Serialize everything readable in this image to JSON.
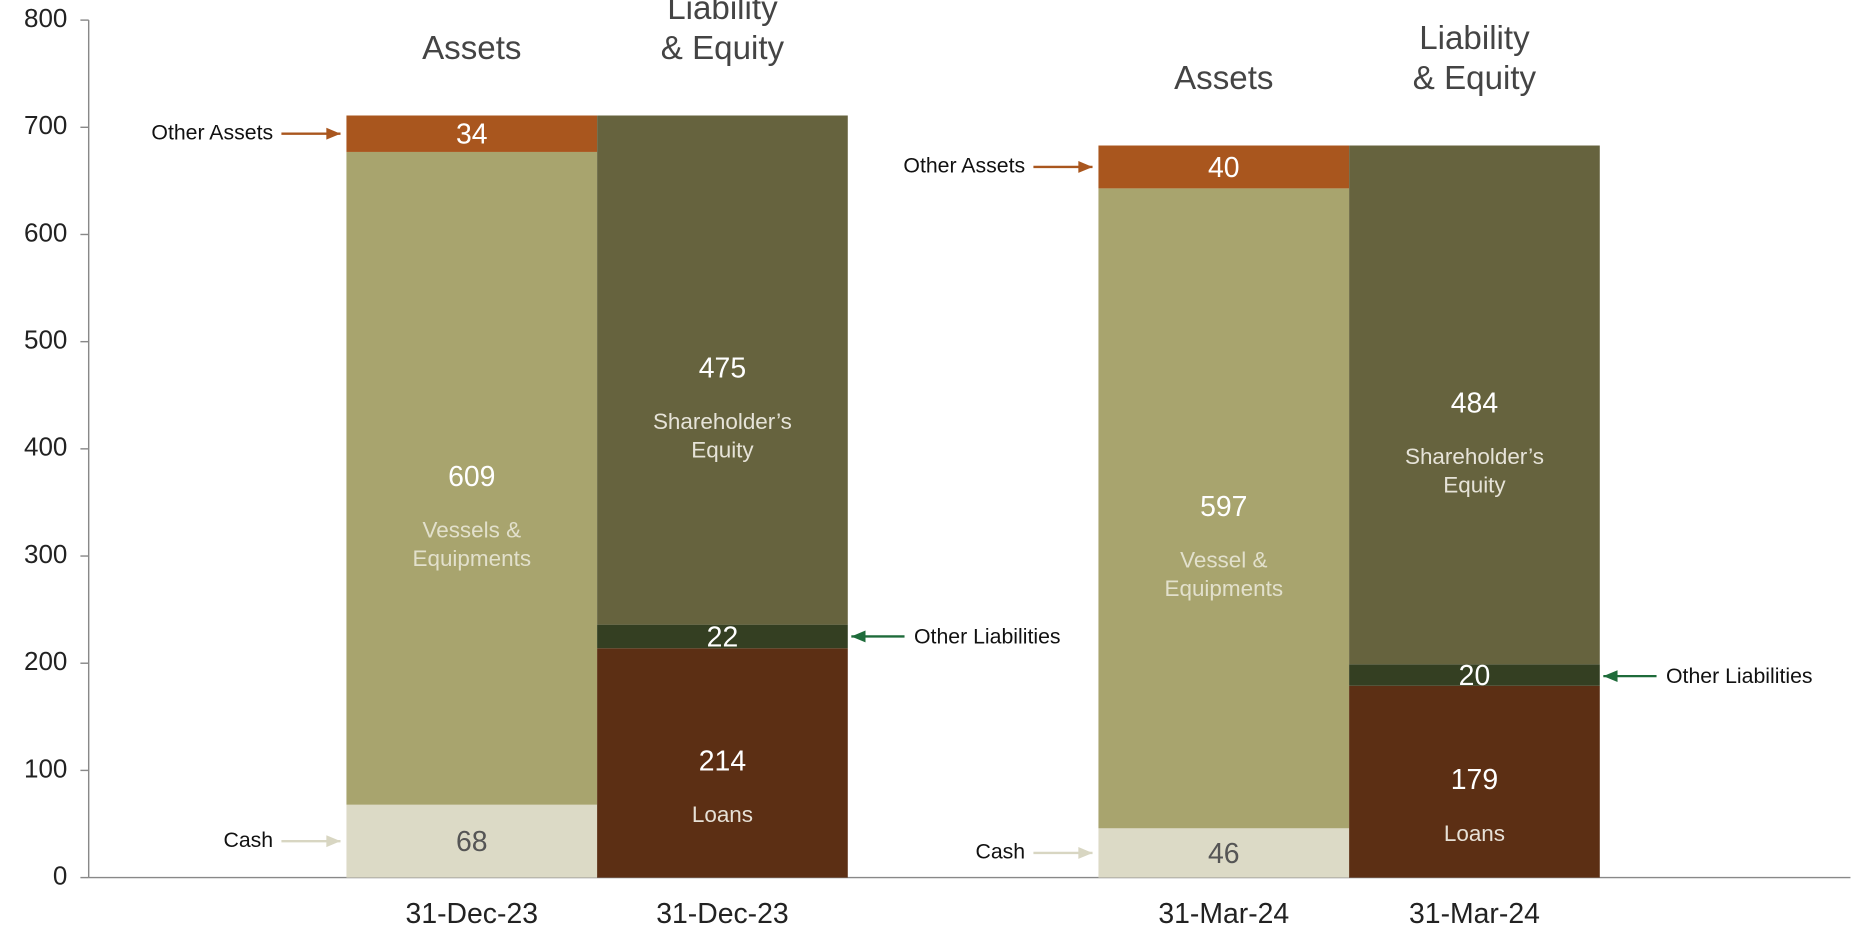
{
  "chart_data": {
    "type": "stacked_bar",
    "ylim": [
      0,
      800
    ],
    "yticks": [
      0,
      100,
      200,
      300,
      400,
      500,
      600,
      700,
      800
    ],
    "columns": [
      {
        "category": "31-Dec-23",
        "header": [
          "Assets"
        ],
        "segments": [
          {
            "value": 68,
            "color": "#dcdac6",
            "value_color": "#555555",
            "callout": "Cash",
            "callout_side": "left",
            "arrow_color": "#d8d6c2"
          },
          {
            "value": 609,
            "color": "#a8a46e",
            "value_color": "#ffffff",
            "label": [
              "Vessels &",
              "Equipments"
            ],
            "label_color": "#e2e0cc"
          },
          {
            "value": 34,
            "color": "#a9561e",
            "value_color": "#ffffff",
            "callout": "Other Assets",
            "callout_side": "left",
            "arrow_color": "#a9561e"
          }
        ]
      },
      {
        "category": "31-Dec-23",
        "header": [
          "Liability",
          "& Equity"
        ],
        "segments": [
          {
            "value": 214,
            "color": "#5c2f14",
            "value_color": "#ffffff",
            "label": [
              "Loans"
            ],
            "label_color": "#e6e0d6"
          },
          {
            "value": 22,
            "color": "#343f22",
            "value_color": "#ffffff",
            "callout": "Other Liabilities",
            "callout_side": "right",
            "arrow_color": "#1e6b3a"
          },
          {
            "value": 475,
            "color": "#66633e",
            "value_color": "#ffffff",
            "label": [
              "Shareholder’s",
              "Equity"
            ],
            "label_color": "#e6e3d8"
          }
        ]
      },
      {
        "category": "31-Mar-24",
        "header": [
          "Assets"
        ],
        "segments": [
          {
            "value": 46,
            "color": "#dcdac6",
            "value_color": "#555555",
            "callout": "Cash",
            "callout_side": "left",
            "arrow_color": "#d8d6c2"
          },
          {
            "value": 597,
            "color": "#a8a46e",
            "value_color": "#ffffff",
            "label": [
              "Vessel &",
              "Equipments"
            ],
            "label_color": "#e2e0cc"
          },
          {
            "value": 40,
            "color": "#a9561e",
            "value_color": "#ffffff",
            "callout": "Other Assets",
            "callout_side": "left",
            "arrow_color": "#a9561e"
          }
        ]
      },
      {
        "category": "31-Mar-24",
        "header": [
          "Liability",
          "& Equity"
        ],
        "segments": [
          {
            "value": 179,
            "color": "#5c2f14",
            "value_color": "#ffffff",
            "label": [
              "Loans"
            ],
            "label_color": "#e6e0d6"
          },
          {
            "value": 20,
            "color": "#343f22",
            "value_color": "#ffffff",
            "callout": "Other Liabilities",
            "callout_side": "right",
            "arrow_color": "#1e6b3a"
          },
          {
            "value": 484,
            "color": "#66633e",
            "value_color": "#ffffff",
            "label": [
              "Shareholder’s",
              "Equity"
            ],
            "label_color": "#e6e3d8"
          }
        ]
      }
    ]
  }
}
